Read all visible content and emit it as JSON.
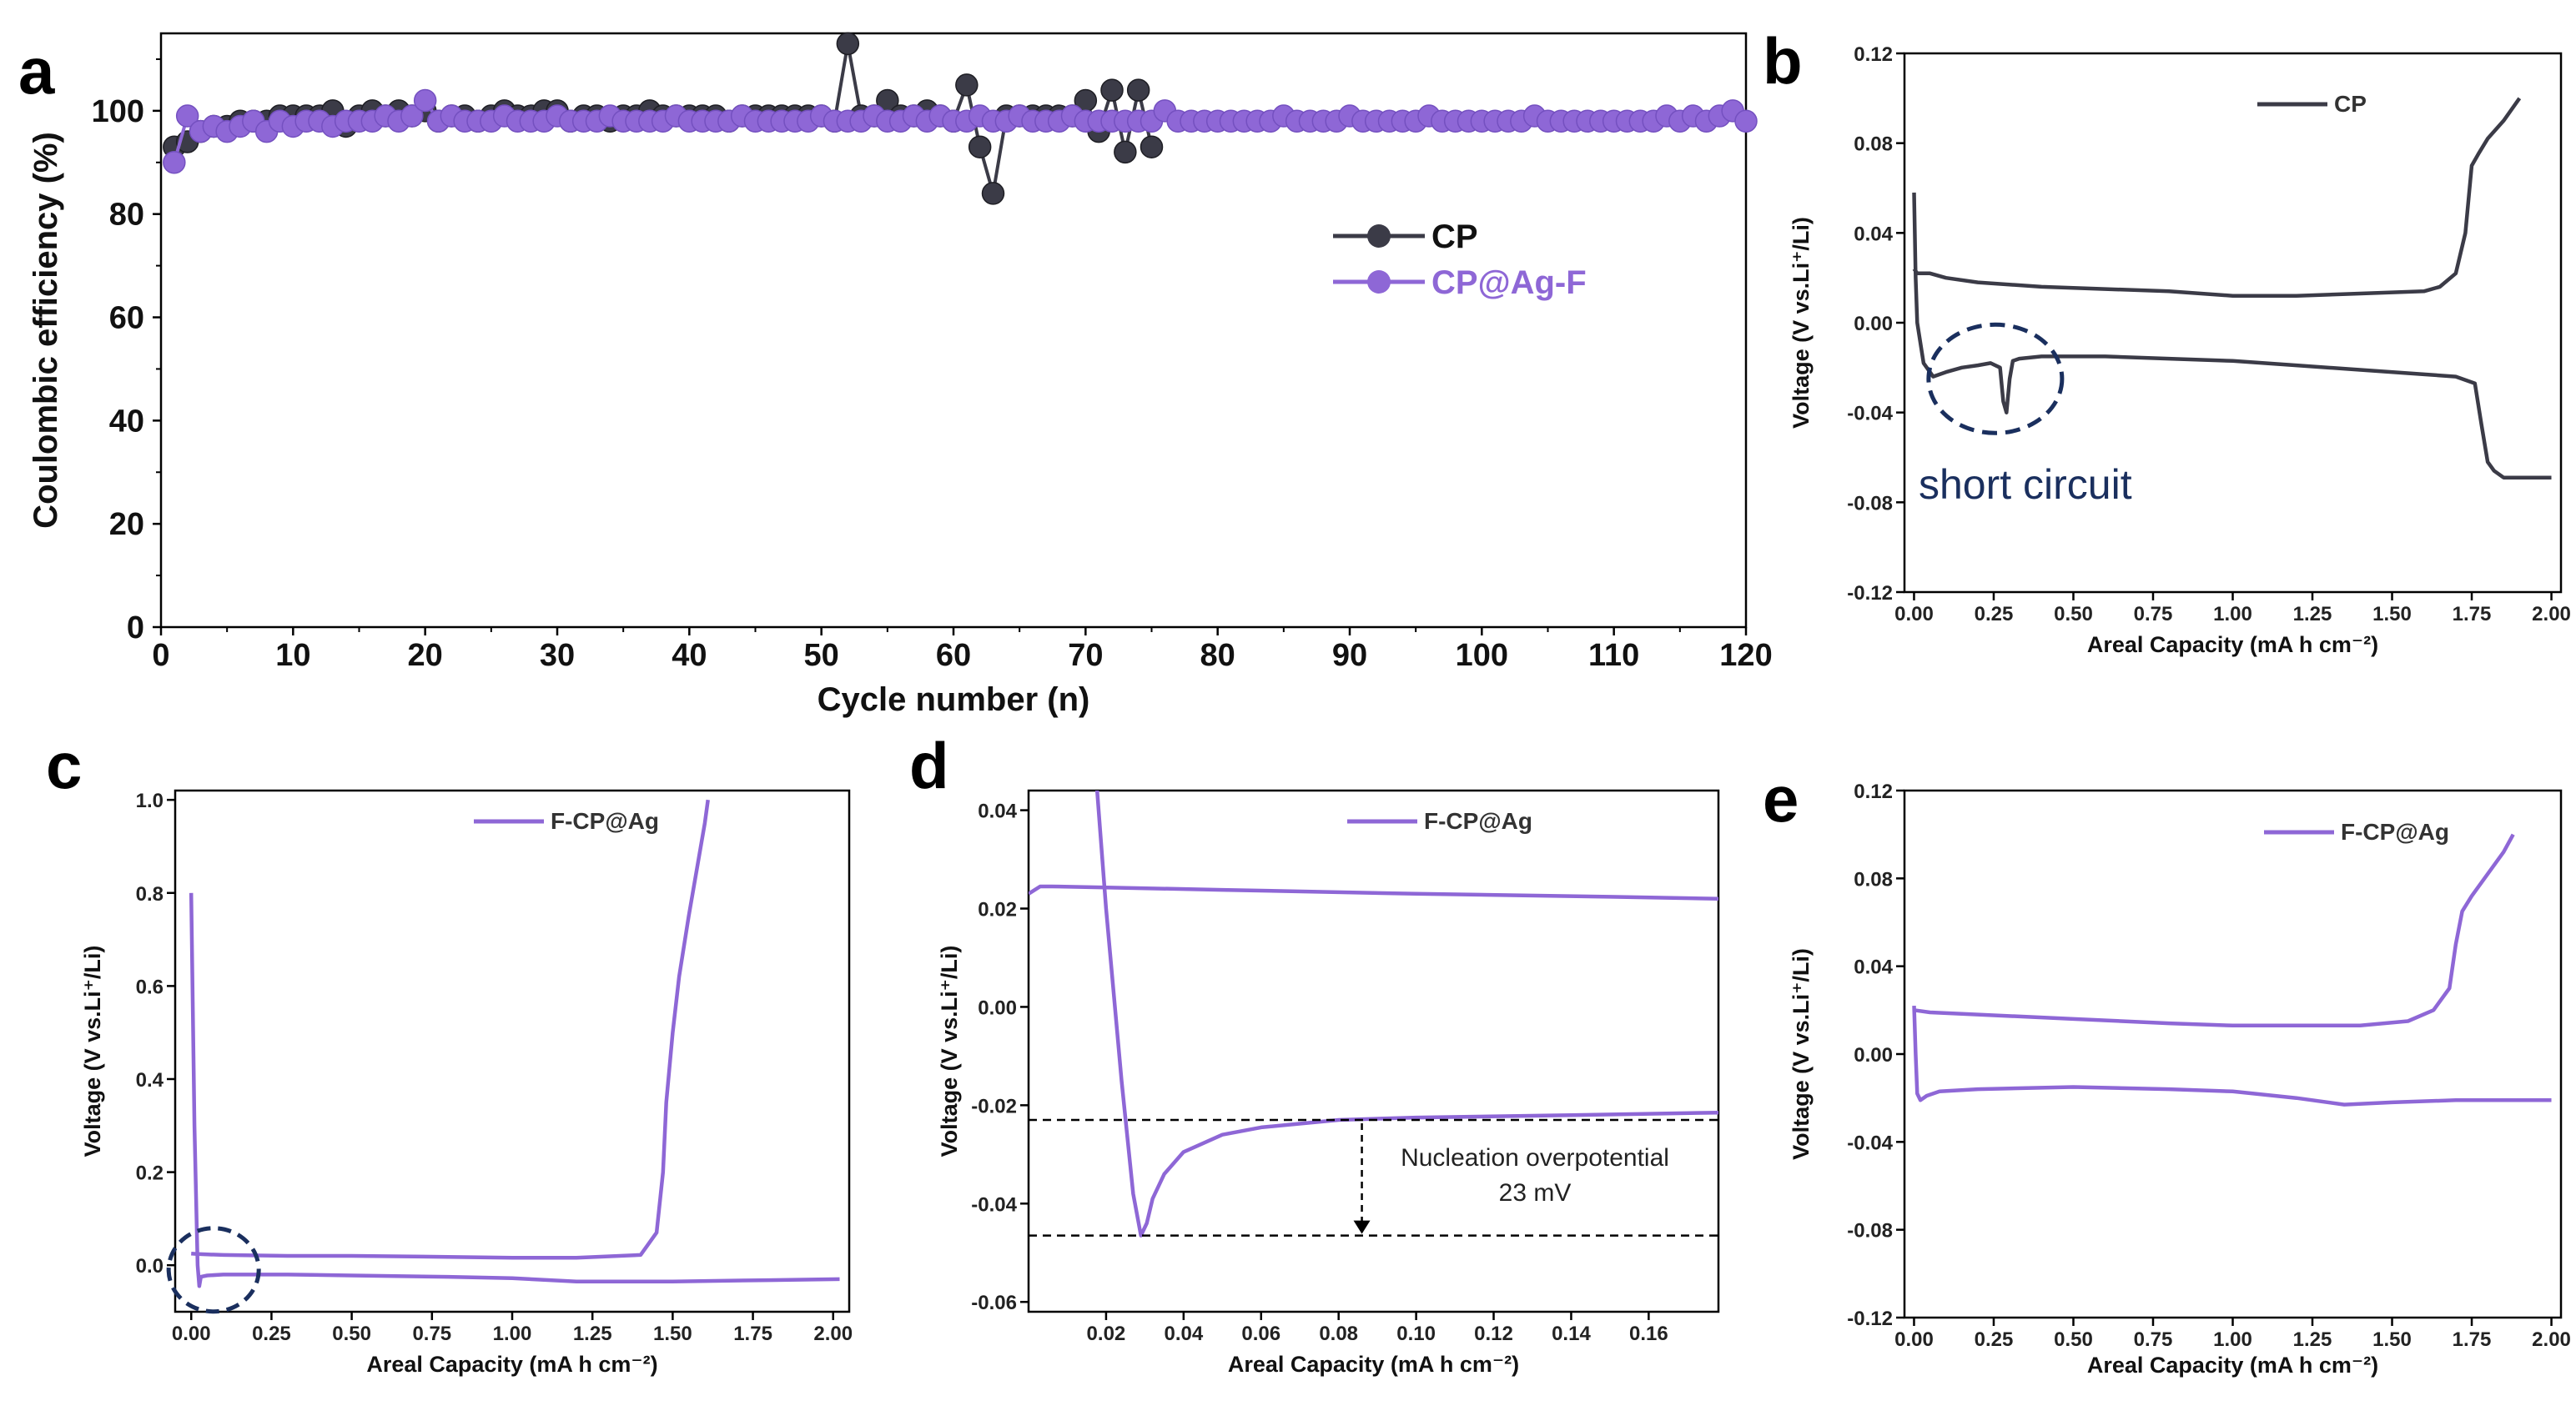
{
  "colors": {
    "cp": "#3b3b47",
    "ag": "#8e67d6",
    "circle": "#1a2f5e",
    "axis": "#000000"
  },
  "chart_data": [
    {
      "id": "a",
      "type": "line",
      "panel_label": "a",
      "xlabel": "Cycle number (n)",
      "ylabel": "Coulombic efficiency (%)",
      "xlim": [
        0,
        120
      ],
      "ylim": [
        0,
        115
      ],
      "xticks": [
        0,
        10,
        20,
        30,
        40,
        50,
        60,
        70,
        80,
        90,
        100,
        110,
        120
      ],
      "yticks": [
        0,
        20,
        40,
        60,
        80,
        100
      ],
      "legend": [
        "CP",
        "CP@Ag-F"
      ],
      "series": [
        {
          "name": "CP",
          "color_key": "cp",
          "x": [
            1,
            2,
            3,
            4,
            5,
            6,
            7,
            8,
            9,
            10,
            11,
            12,
            13,
            14,
            15,
            16,
            17,
            18,
            19,
            20,
            21,
            22,
            23,
            24,
            25,
            26,
            27,
            28,
            29,
            30,
            31,
            32,
            33,
            34,
            35,
            36,
            37,
            38,
            39,
            40,
            41,
            42,
            43,
            44,
            45,
            46,
            47,
            48,
            49,
            50,
            51,
            52,
            53,
            54,
            55,
            56,
            57,
            58,
            59,
            60,
            61,
            62,
            63,
            64,
            65,
            66,
            67,
            68,
            69,
            70,
            71,
            72,
            73,
            74,
            75
          ],
          "values": [
            93,
            94,
            96,
            97,
            97,
            98,
            98,
            98,
            99,
            99,
            99,
            99,
            100,
            97,
            99,
            100,
            99,
            100,
            99,
            100,
            98,
            99,
            99,
            98,
            99,
            100,
            99,
            99,
            100,
            100,
            98,
            99,
            99,
            98,
            99,
            99,
            100,
            99,
            99,
            99,
            99,
            99,
            98,
            99,
            99,
            99,
            99,
            99,
            99,
            99,
            98,
            113,
            99,
            99,
            102,
            99,
            99,
            100,
            99,
            98,
            105,
            93,
            84,
            99,
            99,
            99,
            99,
            99,
            99,
            102,
            96,
            104,
            92,
            104,
            93
          ]
        },
        {
          "name": "CP@Ag-F",
          "color_key": "ag",
          "x": [
            1,
            2,
            3,
            4,
            5,
            6,
            7,
            8,
            9,
            10,
            11,
            12,
            13,
            14,
            15,
            16,
            17,
            18,
            19,
            20,
            21,
            22,
            23,
            24,
            25,
            26,
            27,
            28,
            29,
            30,
            31,
            32,
            33,
            34,
            35,
            36,
            37,
            38,
            39,
            40,
            41,
            42,
            43,
            44,
            45,
            46,
            47,
            48,
            49,
            50,
            51,
            52,
            53,
            54,
            55,
            56,
            57,
            58,
            59,
            60,
            61,
            62,
            63,
            64,
            65,
            66,
            67,
            68,
            69,
            70,
            71,
            72,
            73,
            74,
            75,
            76,
            77,
            78,
            79,
            80,
            81,
            82,
            83,
            84,
            85,
            86,
            87,
            88,
            89,
            90,
            91,
            92,
            93,
            94,
            95,
            96,
            97,
            98,
            99,
            100,
            101,
            102,
            103,
            104,
            105,
            106,
            107,
            108,
            109,
            110,
            111,
            112,
            113,
            114,
            115,
            116,
            117,
            118,
            119,
            120
          ],
          "values": [
            90,
            99,
            96,
            97,
            96,
            97,
            98,
            96,
            98,
            97,
            98,
            98,
            97,
            98,
            98,
            98,
            99,
            98,
            99,
            102,
            98,
            99,
            98,
            98,
            98,
            99,
            98,
            98,
            98,
            99,
            98,
            98,
            98,
            99,
            98,
            98,
            98,
            98,
            99,
            98,
            98,
            98,
            98,
            99,
            98,
            98,
            98,
            98,
            98,
            99,
            98,
            98,
            98,
            99,
            98,
            98,
            99,
            98,
            99,
            98,
            98,
            99,
            98,
            98,
            99,
            98,
            98,
            98,
            99,
            98,
            98,
            98,
            98,
            98,
            98,
            100,
            98,
            98,
            98,
            98,
            98,
            98,
            98,
            98,
            99,
            98,
            98,
            98,
            98,
            99,
            98,
            98,
            98,
            98,
            98,
            99,
            98,
            98,
            98,
            98,
            98,
            98,
            98,
            99,
            98,
            98,
            98,
            98,
            98,
            98,
            98,
            98,
            98,
            99,
            98,
            99,
            98,
            99,
            100,
            98
          ]
        }
      ]
    },
    {
      "id": "b",
      "type": "line",
      "panel_label": "b",
      "xlabel": "Areal Capacity (mA h cm⁻²)",
      "ylabel": "Voltage (V vs.Li⁺/Li)",
      "xlim": [
        -0.03,
        2.03
      ],
      "ylim": [
        -0.12,
        0.12
      ],
      "xticks": [
        "0.00",
        "0.25",
        "0.50",
        "0.75",
        "1.00",
        "1.25",
        "1.50",
        "1.75",
        "2.00"
      ],
      "yticks": [
        "-0.12",
        "-0.08",
        "-0.04",
        "0.00",
        "0.04",
        "0.08",
        "0.12"
      ],
      "legend": [
        "CP"
      ],
      "annotation": "short circuit",
      "series": [
        {
          "name": "CP plating",
          "color_key": "cp",
          "x": [
            0,
            0.005,
            0.01,
            0.03,
            0.06,
            0.1,
            0.15,
            0.2,
            0.24,
            0.27,
            0.28,
            0.29,
            0.3,
            0.31,
            0.33,
            0.4,
            0.6,
            0.8,
            1.0,
            1.2,
            1.4,
            1.6,
            1.7,
            1.76,
            1.78,
            1.8,
            1.82,
            1.85,
            1.9,
            2.0
          ],
          "values": [
            0.058,
            0.02,
            0.0,
            -0.018,
            -0.024,
            -0.022,
            -0.02,
            -0.019,
            -0.018,
            -0.02,
            -0.035,
            -0.04,
            -0.025,
            -0.017,
            -0.016,
            -0.015,
            -0.015,
            -0.016,
            -0.017,
            -0.019,
            -0.021,
            -0.023,
            -0.024,
            -0.027,
            -0.045,
            -0.062,
            -0.066,
            -0.069,
            -0.069,
            -0.069
          ]
        },
        {
          "name": "CP stripping",
          "color_key": "cp",
          "x": [
            0,
            0.005,
            0.01,
            0.05,
            0.1,
            0.2,
            0.4,
            0.6,
            0.8,
            1.0,
            1.2,
            1.4,
            1.6,
            1.65,
            1.7,
            1.73,
            1.75,
            1.77,
            1.8,
            1.85,
            1.9
          ],
          "values": [
            0.024,
            0.023,
            0.022,
            0.022,
            0.02,
            0.018,
            0.016,
            0.015,
            0.014,
            0.012,
            0.012,
            0.013,
            0.014,
            0.016,
            0.022,
            0.04,
            0.07,
            0.075,
            0.082,
            0.09,
            0.1
          ]
        }
      ]
    },
    {
      "id": "c",
      "type": "line",
      "panel_label": "c",
      "xlabel": "Areal Capacity (mA h cm⁻²)",
      "ylabel": "Voltage (V vs.Li⁺/Li)",
      "xlim": [
        -0.05,
        2.05
      ],
      "ylim": [
        -0.1,
        1.02
      ],
      "xticks": [
        "0.00",
        "0.25",
        "0.50",
        "0.75",
        "1.00",
        "1.25",
        "1.50",
        "1.75",
        "2.00"
      ],
      "yticks": [
        "0.0",
        "0.2",
        "0.4",
        "0.6",
        "0.8",
        "1.0"
      ],
      "legend": [
        "F-CP@Ag"
      ],
      "series": [
        {
          "name": "F-CP@Ag plating",
          "color_key": "ag",
          "x": [
            0,
            0.01,
            0.02,
            0.025,
            0.03,
            0.05,
            0.1,
            0.3,
            0.5,
            0.8,
            1.0,
            1.2,
            1.5,
            1.8,
            2.02
          ],
          "values": [
            0.8,
            0.3,
            0.0,
            -0.045,
            -0.025,
            -0.022,
            -0.02,
            -0.02,
            -0.022,
            -0.025,
            -0.028,
            -0.035,
            -0.035,
            -0.032,
            -0.03
          ]
        },
        {
          "name": "F-CP@Ag stripping",
          "color_key": "ag",
          "x": [
            0,
            0.02,
            0.1,
            0.3,
            0.5,
            0.8,
            1.0,
            1.2,
            1.4,
            1.45,
            1.47,
            1.48,
            1.5,
            1.52,
            1.55,
            1.6,
            1.61
          ],
          "values": [
            0.025,
            0.024,
            0.022,
            0.02,
            0.02,
            0.018,
            0.016,
            0.016,
            0.022,
            0.07,
            0.2,
            0.35,
            0.5,
            0.62,
            0.75,
            0.95,
            1.0
          ]
        }
      ]
    },
    {
      "id": "d",
      "type": "line",
      "panel_label": "d",
      "xlabel": "Areal Capacity (mA h cm⁻²)",
      "ylabel": "Voltage (V vs.Li⁺/Li)",
      "xlim": [
        0,
        0.178
      ],
      "ylim": [
        -0.062,
        0.044
      ],
      "xticks": [
        "0.02",
        "0.04",
        "0.06",
        "0.08",
        "0.10",
        "0.12",
        "0.14",
        "0.16"
      ],
      "yticks": [
        "-0.06",
        "-0.04",
        "-0.02",
        "0.00",
        "0.02",
        "0.04"
      ],
      "legend": [
        "F-CP@Ag"
      ],
      "annotation_lines": [
        "Nucleation overpotential",
        "23 mV"
      ],
      "reference_levels": [
        -0.023,
        -0.0465
      ],
      "series": [
        {
          "name": "F-CP@Ag stripping",
          "color_key": "ag",
          "x": [
            0,
            0.003,
            0.006,
            0.02,
            0.05,
            0.1,
            0.15,
            0.178
          ],
          "values": [
            0.023,
            0.0245,
            0.0245,
            0.0243,
            0.0238,
            0.023,
            0.0224,
            0.022
          ]
        },
        {
          "name": "F-CP@Ag plating",
          "color_key": "ag",
          "x": [
            0.0175,
            0.02,
            0.024,
            0.027,
            0.029,
            0.0305,
            0.032,
            0.035,
            0.04,
            0.05,
            0.06,
            0.08,
            0.1,
            0.14,
            0.178
          ],
          "values": [
            0.046,
            0.02,
            -0.015,
            -0.038,
            -0.0465,
            -0.044,
            -0.039,
            -0.034,
            -0.0295,
            -0.026,
            -0.0245,
            -0.023,
            -0.0225,
            -0.022,
            -0.0215
          ]
        }
      ]
    },
    {
      "id": "e",
      "type": "line",
      "panel_label": "e",
      "xlabel": "Areal Capacity (mA h cm⁻²)",
      "ylabel": "Voltage (V vs.Li⁺/Li)",
      "xlim": [
        -0.03,
        2.03
      ],
      "ylim": [
        -0.12,
        0.12
      ],
      "xticks": [
        "0.00",
        "0.25",
        "0.50",
        "0.75",
        "1.00",
        "1.25",
        "1.50",
        "1.75",
        "2.00"
      ],
      "yticks": [
        "-0.12",
        "-0.08",
        "-0.04",
        "0.00",
        "0.04",
        "0.08",
        "0.12"
      ],
      "legend": [
        "F-CP@Ag"
      ],
      "series": [
        {
          "name": "F-CP@Ag plating",
          "color_key": "ag",
          "x": [
            0,
            0.005,
            0.01,
            0.02,
            0.04,
            0.08,
            0.2,
            0.5,
            0.8,
            1.0,
            1.2,
            1.35,
            1.5,
            1.7,
            1.9,
            2.0
          ],
          "values": [
            0.022,
            0.0,
            -0.018,
            -0.021,
            -0.019,
            -0.017,
            -0.016,
            -0.015,
            -0.016,
            -0.017,
            -0.02,
            -0.023,
            -0.022,
            -0.021,
            -0.021,
            -0.021
          ]
        },
        {
          "name": "F-CP@Ag stripping",
          "color_key": "ag",
          "x": [
            0,
            0.05,
            0.2,
            0.5,
            0.8,
            1.0,
            1.2,
            1.4,
            1.55,
            1.63,
            1.68,
            1.7,
            1.72,
            1.75,
            1.8,
            1.85,
            1.88
          ],
          "values": [
            0.02,
            0.019,
            0.018,
            0.016,
            0.014,
            0.013,
            0.013,
            0.013,
            0.015,
            0.02,
            0.03,
            0.05,
            0.065,
            0.072,
            0.082,
            0.092,
            0.1
          ]
        }
      ]
    }
  ]
}
